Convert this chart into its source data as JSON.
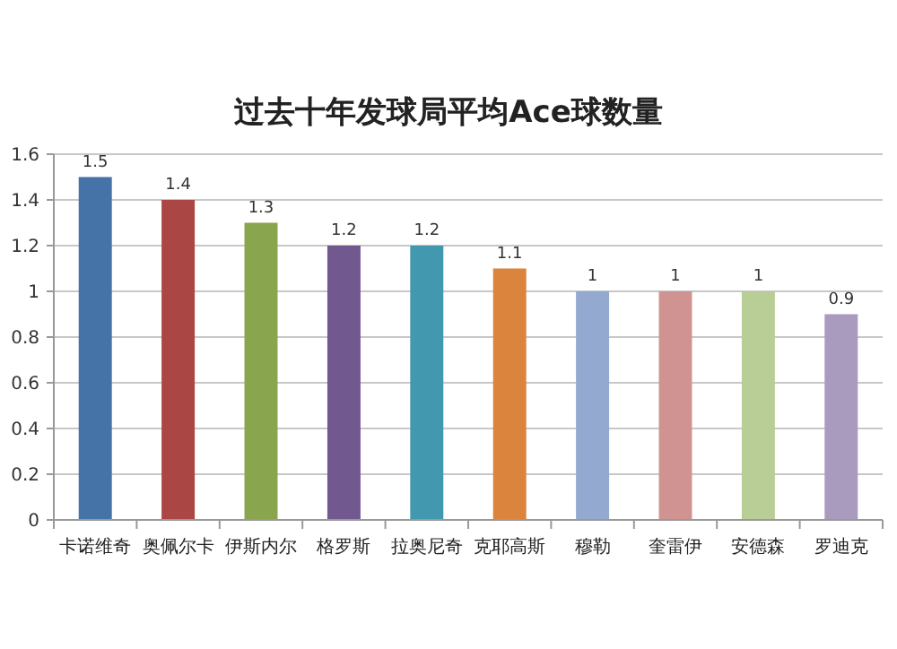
{
  "chart_data": {
    "type": "bar",
    "title": "过去十年发球局平均Ace球数量",
    "categories": [
      "卡诺维奇",
      "奥佩尔卡",
      "伊斯内尔",
      "格罗斯",
      "拉奥尼奇",
      "克耶高斯",
      "穆勒",
      "奎雷伊",
      "安德森",
      "罗迪克"
    ],
    "values": [
      1.5,
      1.4,
      1.3,
      1.2,
      1.2,
      1.1,
      1,
      1,
      1,
      0.9
    ],
    "colors": [
      "#4572a7",
      "#aa4643",
      "#89a54e",
      "#71588f",
      "#4198af",
      "#db843d",
      "#93a9cf",
      "#d19392",
      "#b9cd96",
      "#a99bbd"
    ],
    "ylim": [
      0,
      1.6
    ],
    "yticks": [
      0,
      0.2,
      0.4,
      0.6,
      0.8,
      1,
      1.2,
      1.4,
      1.6
    ],
    "grid": "y",
    "data_labels": true
  }
}
